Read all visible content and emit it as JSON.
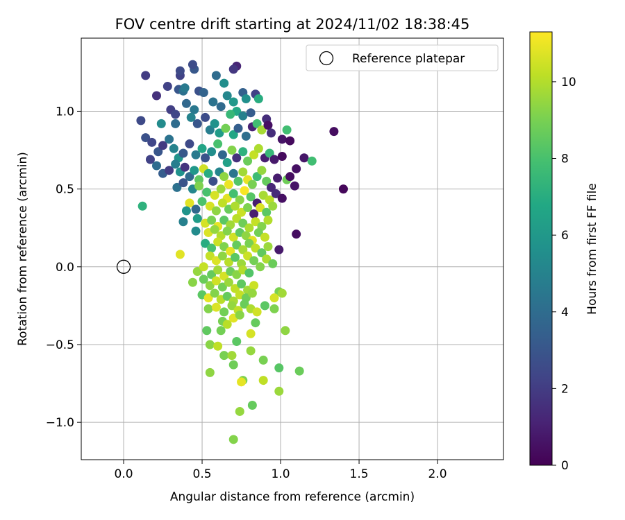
{
  "chart_data": {
    "type": "scatter",
    "title": "FOV centre drift starting at 2024/11/02 18:38:45",
    "xlabel": "Angular distance from reference (arcmin)",
    "ylabel": "Rotation from reference (arcmin)",
    "xlim": [
      -0.27,
      2.42
    ],
    "ylim": [
      -1.24,
      1.47
    ],
    "xticks": [
      "0.0",
      "0.5",
      "1.0",
      "1.5",
      "2.0"
    ],
    "xtick_values": [
      0,
      0.5,
      1.0,
      1.5,
      2.0
    ],
    "yticks": [
      "−1.0",
      "−0.5",
      "0.0",
      "0.5",
      "1.0"
    ],
    "ytick_values": [
      -1.0,
      -0.5,
      0.0,
      0.5,
      1.0
    ],
    "grid": true,
    "legend_position": "top-right",
    "legend": [
      {
        "label": "Reference platepar",
        "marker": "open-circle",
        "x": 0.0,
        "y": 0.0
      }
    ],
    "colorbar": {
      "label": "Hours from first FF file",
      "colormap": "viridis",
      "range": [
        0,
        11.3
      ],
      "ticks": [
        "0",
        "2",
        "4",
        "6",
        "8",
        "10"
      ],
      "tick_values": [
        0,
        2,
        4,
        6,
        8,
        10
      ]
    },
    "points": [
      [
        0.14,
        1.23,
        2.0
      ],
      [
        0.36,
        1.23,
        2.2
      ],
      [
        0.36,
        1.26,
        2.5
      ],
      [
        0.45,
        1.27,
        3.1
      ],
      [
        0.44,
        1.3,
        2.6
      ],
      [
        0.59,
        1.23,
        4.0
      ],
      [
        0.64,
        1.18,
        5.5
      ],
      [
        0.72,
        1.29,
        1.2
      ],
      [
        0.7,
        1.27,
        1.8
      ],
      [
        0.76,
        1.12,
        3.5
      ],
      [
        0.84,
        1.11,
        2.2
      ],
      [
        0.86,
        1.08,
        7.0
      ],
      [
        0.21,
        1.1,
        1.6
      ],
      [
        0.28,
        1.16,
        2.2
      ],
      [
        0.35,
        1.14,
        3.0
      ],
      [
        0.38,
        1.13,
        4.2
      ],
      [
        0.39,
        1.15,
        4.6
      ],
      [
        0.48,
        1.13,
        2.8
      ],
      [
        0.51,
        1.12,
        3.6
      ],
      [
        0.57,
        1.06,
        4.3
      ],
      [
        0.66,
        1.1,
        5.2
      ],
      [
        0.62,
        1.03,
        3.9
      ],
      [
        0.7,
        1.06,
        6.0
      ],
      [
        0.78,
        1.08,
        5.6
      ],
      [
        0.72,
        1.0,
        6.8
      ],
      [
        0.68,
        0.98,
        7.5
      ],
      [
        0.76,
        0.97,
        4.9
      ],
      [
        0.81,
        0.99,
        3.3
      ],
      [
        0.91,
        0.95,
        1.5
      ],
      [
        0.11,
        0.94,
        2.5
      ],
      [
        0.14,
        0.83,
        2.8
      ],
      [
        0.24,
        0.92,
        5.4
      ],
      [
        0.3,
        1.01,
        2.1
      ],
      [
        0.33,
        0.98,
        2.4
      ],
      [
        0.33,
        0.92,
        4.0
      ],
      [
        0.4,
        1.05,
        3.8
      ],
      [
        0.45,
        1.01,
        4.5
      ],
      [
        0.43,
        0.96,
        5.0
      ],
      [
        0.47,
        0.92,
        3.0
      ],
      [
        0.52,
        0.96,
        2.6
      ],
      [
        0.55,
        0.88,
        4.8
      ],
      [
        0.58,
        0.92,
        5.7
      ],
      [
        0.61,
        0.86,
        6.2
      ],
      [
        0.65,
        0.89,
        8.9
      ],
      [
        0.7,
        0.85,
        6.7
      ],
      [
        0.73,
        0.89,
        3.4
      ],
      [
        0.78,
        0.84,
        4.1
      ],
      [
        0.82,
        0.9,
        1.1
      ],
      [
        0.85,
        0.92,
        7.8
      ],
      [
        0.88,
        0.88,
        9.8
      ],
      [
        0.92,
        0.91,
        0.5
      ],
      [
        0.94,
        0.86,
        1.5
      ],
      [
        1.01,
        0.82,
        0.6
      ],
      [
        1.04,
        0.88,
        7.8
      ],
      [
        1.06,
        0.81,
        0.3
      ],
      [
        1.34,
        0.87,
        0.4
      ],
      [
        0.18,
        0.8,
        2.4
      ],
      [
        0.22,
        0.74,
        3.0
      ],
      [
        0.25,
        0.78,
        1.9
      ],
      [
        0.29,
        0.82,
        4.3
      ],
      [
        0.32,
        0.76,
        5.0
      ],
      [
        0.35,
        0.7,
        5.8
      ],
      [
        0.38,
        0.73,
        3.1
      ],
      [
        0.42,
        0.79,
        2.5
      ],
      [
        0.46,
        0.72,
        4.6
      ],
      [
        0.5,
        0.76,
        6.6
      ],
      [
        0.52,
        0.7,
        2.9
      ],
      [
        0.56,
        0.74,
        5.5
      ],
      [
        0.6,
        0.79,
        8.0
      ],
      [
        0.63,
        0.72,
        3.7
      ],
      [
        0.66,
        0.67,
        6.4
      ],
      [
        0.69,
        0.75,
        9.2
      ],
      [
        0.72,
        0.7,
        1.6
      ],
      [
        0.76,
        0.74,
        7.2
      ],
      [
        0.79,
        0.68,
        8.7
      ],
      [
        0.83,
        0.72,
        10.3
      ],
      [
        0.86,
        0.76,
        9.9
      ],
      [
        0.9,
        0.7,
        1.0
      ],
      [
        0.93,
        0.73,
        7.5
      ],
      [
        0.96,
        0.69,
        0.8
      ],
      [
        1.01,
        0.71,
        0.3
      ],
      [
        1.1,
        0.63,
        0.5
      ],
      [
        1.15,
        0.7,
        0.7
      ],
      [
        1.2,
        0.68,
        7.8
      ],
      [
        1.4,
        0.5,
        0.2
      ],
      [
        0.17,
        0.69,
        2.2
      ],
      [
        0.21,
        0.65,
        4.0
      ],
      [
        0.25,
        0.6,
        3.3
      ],
      [
        0.29,
        0.62,
        2.0
      ],
      [
        0.33,
        0.66,
        4.8
      ],
      [
        0.36,
        0.61,
        5.7
      ],
      [
        0.39,
        0.64,
        1.7
      ],
      [
        0.42,
        0.58,
        3.9
      ],
      [
        0.45,
        0.62,
        6.0
      ],
      [
        0.48,
        0.56,
        8.5
      ],
      [
        0.51,
        0.63,
        10.5
      ],
      [
        0.54,
        0.6,
        7.0
      ],
      [
        0.57,
        0.55,
        2.7
      ],
      [
        0.61,
        0.61,
        5.1
      ],
      [
        0.64,
        0.58,
        9.4
      ],
      [
        0.67,
        0.53,
        11.0
      ],
      [
        0.7,
        0.6,
        4.4
      ],
      [
        0.73,
        0.55,
        8.2
      ],
      [
        0.76,
        0.61,
        9.7
      ],
      [
        0.79,
        0.56,
        10.9
      ],
      [
        0.82,
        0.53,
        9.0
      ],
      [
        0.85,
        0.58,
        7.7
      ],
      [
        0.88,
        0.62,
        9.5
      ],
      [
        0.91,
        0.55,
        8.6
      ],
      [
        0.94,
        0.51,
        1.2
      ],
      [
        0.98,
        0.57,
        0.9
      ],
      [
        1.04,
        0.56,
        8.8
      ],
      [
        1.06,
        0.58,
        0.4
      ],
      [
        1.09,
        0.52,
        0.6
      ],
      [
        0.34,
        0.51,
        4.2
      ],
      [
        0.38,
        0.54,
        2.9
      ],
      [
        0.44,
        0.5,
        5.2
      ],
      [
        0.48,
        0.52,
        9.1
      ],
      [
        0.53,
        0.48,
        8.0
      ],
      [
        0.58,
        0.46,
        10.6
      ],
      [
        0.62,
        0.5,
        9.6
      ],
      [
        0.66,
        0.44,
        10.8
      ],
      [
        0.7,
        0.47,
        7.9
      ],
      [
        0.74,
        0.43,
        9.3
      ],
      [
        0.77,
        0.49,
        11.2
      ],
      [
        0.81,
        0.45,
        8.3
      ],
      [
        0.85,
        0.41,
        0.9
      ],
      [
        0.89,
        0.46,
        9.8
      ],
      [
        0.93,
        0.43,
        10.1
      ],
      [
        0.97,
        0.47,
        1.4
      ],
      [
        1.01,
        0.44,
        0.5
      ],
      [
        0.12,
        0.39,
        7.2
      ],
      [
        0.42,
        0.41,
        10.8
      ],
      [
        0.46,
        0.37,
        3.8
      ],
      [
        0.5,
        0.42,
        8.1
      ],
      [
        0.55,
        0.39,
        10.6
      ],
      [
        0.59,
        0.36,
        9.4
      ],
      [
        0.63,
        0.41,
        10.2
      ],
      [
        0.67,
        0.37,
        8.7
      ],
      [
        0.71,
        0.39,
        9.9
      ],
      [
        0.75,
        0.35,
        10.4
      ],
      [
        0.79,
        0.38,
        9.1
      ],
      [
        0.83,
        0.34,
        1.0
      ],
      [
        0.87,
        0.38,
        10.7
      ],
      [
        0.91,
        0.35,
        8.4
      ],
      [
        0.95,
        0.39,
        9.6
      ],
      [
        0.4,
        0.36,
        5.8
      ],
      [
        0.38,
        0.29,
        4.9
      ],
      [
        0.47,
        0.31,
        6.2
      ],
      [
        0.52,
        0.28,
        10.6
      ],
      [
        0.56,
        0.3,
        9.0
      ],
      [
        0.6,
        0.26,
        10.9
      ],
      [
        0.64,
        0.3,
        8.4
      ],
      [
        0.68,
        0.27,
        9.7
      ],
      [
        0.72,
        0.31,
        10.1
      ],
      [
        0.76,
        0.28,
        8.8
      ],
      [
        0.8,
        0.25,
        9.9
      ],
      [
        0.84,
        0.29,
        10.3
      ],
      [
        0.88,
        0.26,
        9.2
      ],
      [
        0.92,
        0.3,
        10.0
      ],
      [
        0.46,
        0.23,
        5.4
      ],
      [
        0.54,
        0.22,
        10.7
      ],
      [
        0.58,
        0.24,
        9.5
      ],
      [
        0.62,
        0.2,
        10.0
      ],
      [
        0.66,
        0.23,
        9.2
      ],
      [
        0.7,
        0.19,
        10.5
      ],
      [
        0.74,
        0.22,
        8.5
      ],
      [
        0.78,
        0.2,
        9.4
      ],
      [
        0.82,
        0.17,
        10.8
      ],
      [
        0.86,
        0.22,
        8.9
      ],
      [
        0.9,
        0.19,
        10.3
      ],
      [
        1.1,
        0.21,
        0.4
      ],
      [
        0.52,
        0.15,
        7.0
      ],
      [
        0.56,
        0.12,
        8.0
      ],
      [
        0.6,
        0.16,
        10.4
      ],
      [
        0.64,
        0.13,
        9.1
      ],
      [
        0.68,
        0.1,
        10.9
      ],
      [
        0.72,
        0.14,
        8.6
      ],
      [
        0.76,
        0.11,
        9.8
      ],
      [
        0.8,
        0.15,
        9.0
      ],
      [
        0.84,
        0.12,
        10.2
      ],
      [
        0.88,
        0.09,
        8.5
      ],
      [
        0.92,
        0.13,
        9.6
      ],
      [
        0.99,
        0.11,
        0.8
      ],
      [
        0.36,
        0.08,
        10.8
      ],
      [
        0.55,
        0.07,
        10.3
      ],
      [
        0.59,
        0.04,
        10.7
      ],
      [
        0.63,
        0.07,
        9.4
      ],
      [
        0.67,
        0.03,
        10.1
      ],
      [
        0.71,
        0.06,
        8.4
      ],
      [
        0.75,
        0.02,
        9.6
      ],
      [
        0.79,
        0.07,
        10.4
      ],
      [
        0.83,
        0.04,
        8.9
      ],
      [
        0.87,
        0.0,
        9.2
      ],
      [
        0.91,
        0.05,
        9.9
      ],
      [
        0.95,
        0.02,
        8.7
      ],
      [
        0.47,
        -0.03,
        9.5
      ],
      [
        0.51,
        0.0,
        10.3
      ],
      [
        0.56,
        -0.05,
        8.6
      ],
      [
        0.6,
        -0.02,
        9.7
      ],
      [
        0.64,
        -0.06,
        10.6
      ],
      [
        0.68,
        -0.03,
        8.8
      ],
      [
        0.72,
        -0.05,
        9.3
      ],
      [
        0.76,
        -0.02,
        10.0
      ],
      [
        0.8,
        -0.04,
        8.2
      ],
      [
        0.44,
        -0.1,
        9.3
      ],
      [
        0.51,
        -0.08,
        8.7
      ],
      [
        0.55,
        -0.12,
        9.4
      ],
      [
        0.59,
        -0.09,
        10.5
      ],
      [
        0.63,
        -0.13,
        8.9
      ],
      [
        0.67,
        -0.1,
        9.6
      ],
      [
        0.71,
        -0.14,
        10.2
      ],
      [
        0.75,
        -0.11,
        8.5
      ],
      [
        0.79,
        -0.15,
        9.7
      ],
      [
        0.83,
        -0.12,
        10.4
      ],
      [
        0.5,
        -0.18,
        8.4
      ],
      [
        0.54,
        -0.2,
        10.9
      ],
      [
        0.58,
        -0.17,
        9.2
      ],
      [
        0.62,
        -0.21,
        10.1
      ],
      [
        0.66,
        -0.19,
        8.6
      ],
      [
        0.7,
        -0.22,
        9.8
      ],
      [
        0.74,
        -0.18,
        10.3
      ],
      [
        0.78,
        -0.2,
        8.8
      ],
      [
        0.82,
        -0.17,
        9.5
      ],
      [
        0.99,
        -0.16,
        9.0
      ],
      [
        1.01,
        -0.17,
        9.7
      ],
      [
        0.96,
        -0.2,
        10.6
      ],
      [
        0.54,
        -0.27,
        9.2
      ],
      [
        0.59,
        -0.26,
        10.7
      ],
      [
        0.64,
        -0.29,
        8.9
      ],
      [
        0.69,
        -0.25,
        9.5
      ],
      [
        0.73,
        -0.28,
        10.2
      ],
      [
        0.77,
        -0.24,
        8.7
      ],
      [
        0.81,
        -0.27,
        9.9
      ],
      [
        0.85,
        -0.29,
        10.5
      ],
      [
        0.9,
        -0.25,
        8.4
      ],
      [
        0.96,
        -0.27,
        9.1
      ],
      [
        0.63,
        -0.35,
        9.0
      ],
      [
        0.66,
        -0.37,
        10.1
      ],
      [
        0.7,
        -0.33,
        10.8
      ],
      [
        0.74,
        -0.31,
        9.3
      ],
      [
        0.84,
        -0.36,
        8.6
      ],
      [
        0.53,
        -0.41,
        8.5
      ],
      [
        0.62,
        -0.41,
        8.9
      ],
      [
        1.03,
        -0.41,
        9.4
      ],
      [
        0.81,
        -0.43,
        10.6
      ],
      [
        0.55,
        -0.5,
        9.3
      ],
      [
        0.6,
        -0.51,
        10.2
      ],
      [
        0.72,
        -0.48,
        8.4
      ],
      [
        0.64,
        -0.57,
        9.0
      ],
      [
        0.69,
        -0.57,
        9.7
      ],
      [
        0.81,
        -0.54,
        9.5
      ],
      [
        0.89,
        -0.6,
        9.0
      ],
      [
        0.55,
        -0.68,
        9.4
      ],
      [
        0.7,
        -0.63,
        8.8
      ],
      [
        0.99,
        -0.65,
        8.3
      ],
      [
        1.12,
        -0.67,
        8.7
      ],
      [
        0.76,
        -0.73,
        9.1
      ],
      [
        0.75,
        -0.74,
        10.9
      ],
      [
        0.89,
        -0.73,
        10.2
      ],
      [
        0.99,
        -0.8,
        9.6
      ],
      [
        0.82,
        -0.89,
        8.6
      ],
      [
        0.74,
        -0.93,
        9.5
      ],
      [
        0.7,
        -1.11,
        9.2
      ]
    ]
  }
}
